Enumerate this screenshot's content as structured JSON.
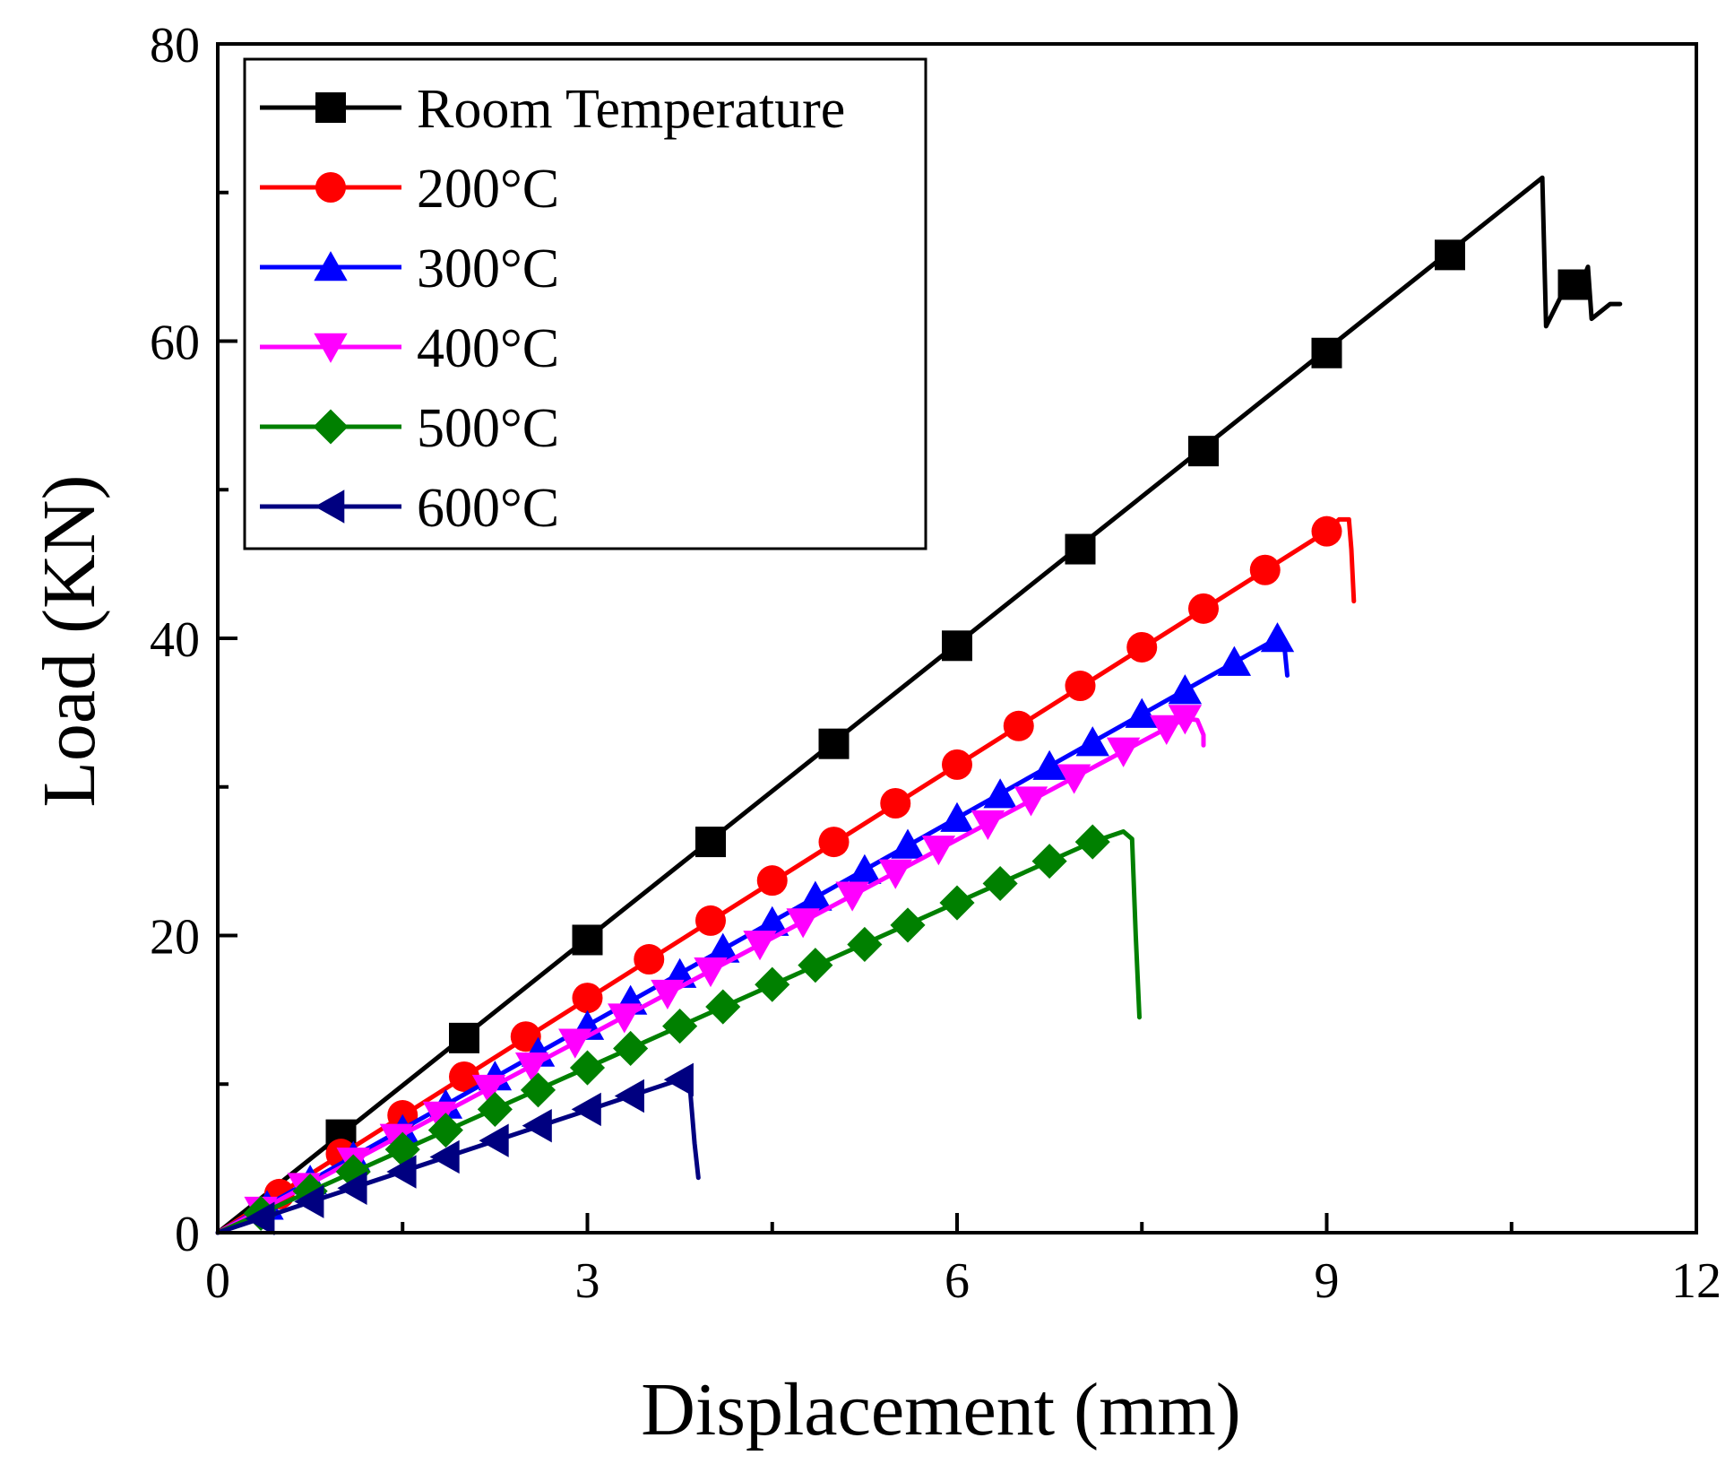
{
  "chart_data": {
    "type": "line",
    "title": "",
    "xlabel": "Displacement (mm)",
    "ylabel": "Load (KN)",
    "xlim": [
      0,
      12
    ],
    "ylim": [
      0,
      80
    ],
    "xticks": [
      0,
      3,
      6,
      9,
      12
    ],
    "yticks": [
      0,
      20,
      40,
      60,
      80
    ],
    "grid": false,
    "legend_position": "top-left",
    "series": [
      {
        "name": "Room Temperature",
        "color": "#000000",
        "marker": "square",
        "line": [
          [
            0,
            0
          ],
          [
            10.75,
            71
          ],
          [
            10.78,
            61
          ],
          [
            10.9,
            63
          ],
          [
            11.05,
            63.5
          ],
          [
            11.12,
            65
          ],
          [
            11.15,
            61.5
          ],
          [
            11.3,
            62.5
          ],
          [
            11.38,
            62.5
          ]
        ],
        "markers": [
          [
            1,
            6.6
          ],
          [
            2,
            13.1
          ],
          [
            3,
            19.7
          ],
          [
            4,
            26.3
          ],
          [
            5,
            32.9
          ],
          [
            6,
            39.5
          ],
          [
            7,
            46
          ],
          [
            8,
            52.6
          ],
          [
            9,
            59.2
          ],
          [
            10,
            65.8
          ],
          [
            11,
            63.8
          ]
        ]
      },
      {
        "name": "200°C",
        "color": "#ff0000",
        "marker": "circle",
        "line": [
          [
            0,
            0
          ],
          [
            9.0,
            47.2
          ],
          [
            9.1,
            48
          ],
          [
            9.18,
            48
          ],
          [
            9.2,
            46
          ],
          [
            9.22,
            42.5
          ]
        ],
        "markers": [
          [
            0.5,
            2.6
          ],
          [
            1,
            5.3
          ],
          [
            1.5,
            7.9
          ],
          [
            2,
            10.5
          ],
          [
            2.5,
            13.2
          ],
          [
            3,
            15.8
          ],
          [
            3.5,
            18.4
          ],
          [
            4,
            21
          ],
          [
            4.5,
            23.7
          ],
          [
            5,
            26.3
          ],
          [
            5.5,
            28.9
          ],
          [
            6,
            31.5
          ],
          [
            6.5,
            34.1
          ],
          [
            7,
            36.8
          ],
          [
            7.5,
            39.4
          ],
          [
            8,
            42
          ],
          [
            8.5,
            44.6
          ],
          [
            9,
            47.2
          ]
        ]
      },
      {
        "name": "300°C",
        "color": "#0000ff",
        "marker": "triangle-up",
        "line": [
          [
            0,
            0
          ],
          [
            8.6,
            40
          ],
          [
            8.65,
            40
          ],
          [
            8.68,
            37.5
          ]
        ],
        "markers": [
          [
            0.4,
            1.8
          ],
          [
            0.75,
            3.5
          ],
          [
            1.1,
            5.1
          ],
          [
            1.5,
            6.9
          ],
          [
            1.85,
            8.6
          ],
          [
            2.25,
            10.5
          ],
          [
            2.6,
            12.1
          ],
          [
            3,
            13.9
          ],
          [
            3.35,
            15.6
          ],
          [
            3.75,
            17.4
          ],
          [
            4.1,
            19.1
          ],
          [
            4.5,
            20.9
          ],
          [
            4.85,
            22.6
          ],
          [
            5.25,
            24.4
          ],
          [
            5.6,
            26.1
          ],
          [
            6,
            27.9
          ],
          [
            6.35,
            29.5
          ],
          [
            6.75,
            31.4
          ],
          [
            7.1,
            33
          ],
          [
            7.5,
            34.9
          ],
          [
            7.85,
            36.5
          ],
          [
            8.25,
            38.4
          ],
          [
            8.6,
            40
          ]
        ]
      },
      {
        "name": "400°C",
        "color": "#ff00ff",
        "marker": "triangle-down",
        "line": [
          [
            0,
            0
          ],
          [
            7.85,
            34.6
          ],
          [
            7.95,
            34.5
          ],
          [
            8.0,
            33.5
          ],
          [
            8.0,
            32.8
          ]
        ],
        "markers": [
          [
            0.35,
            1.5
          ],
          [
            0.7,
            3.1
          ],
          [
            1.1,
            4.8
          ],
          [
            1.45,
            6.4
          ],
          [
            1.8,
            7.9
          ],
          [
            2.2,
            9.7
          ],
          [
            2.55,
            11.2
          ],
          [
            2.9,
            12.8
          ],
          [
            3.3,
            14.5
          ],
          [
            3.65,
            16.1
          ],
          [
            4,
            17.6
          ],
          [
            4.4,
            19.4
          ],
          [
            4.75,
            20.9
          ],
          [
            5.15,
            22.7
          ],
          [
            5.5,
            24.2
          ],
          [
            5.85,
            25.8
          ],
          [
            6.25,
            27.5
          ],
          [
            6.6,
            29.1
          ],
          [
            6.95,
            30.6
          ],
          [
            7.35,
            32.4
          ],
          [
            7.7,
            33.9
          ],
          [
            7.85,
            34.6
          ]
        ]
      },
      {
        "name": "500°C",
        "color": "#008000",
        "marker": "diamond",
        "line": [
          [
            0,
            0
          ],
          [
            7.1,
            26.3
          ],
          [
            7.35,
            27
          ],
          [
            7.42,
            26.5
          ],
          [
            7.45,
            20
          ],
          [
            7.48,
            14.5
          ]
        ],
        "markers": [
          [
            0.35,
            1.3
          ],
          [
            0.75,
            2.8
          ],
          [
            1.1,
            4.1
          ],
          [
            1.5,
            5.6
          ],
          [
            1.85,
            6.9
          ],
          [
            2.25,
            8.3
          ],
          [
            2.6,
            9.6
          ],
          [
            3,
            11.1
          ],
          [
            3.35,
            12.4
          ],
          [
            3.75,
            13.9
          ],
          [
            4.1,
            15.2
          ],
          [
            4.5,
            16.7
          ],
          [
            4.85,
            18
          ],
          [
            5.25,
            19.4
          ],
          [
            5.6,
            20.7
          ],
          [
            6,
            22.2
          ],
          [
            6.35,
            23.5
          ],
          [
            6.75,
            25
          ],
          [
            7.1,
            26.3
          ]
        ]
      },
      {
        "name": "600°C",
        "color": "#000080",
        "marker": "triangle-left",
        "line": [
          [
            0,
            0
          ],
          [
            3.75,
            10.3
          ],
          [
            3.83,
            10
          ],
          [
            3.87,
            6
          ],
          [
            3.9,
            3.7
          ]
        ],
        "markers": [
          [
            0.35,
            0.95
          ],
          [
            0.75,
            2.1
          ],
          [
            1.1,
            3
          ],
          [
            1.5,
            4.1
          ],
          [
            1.85,
            5.1
          ],
          [
            2.25,
            6.2
          ],
          [
            2.6,
            7.2
          ],
          [
            3,
            8.3
          ],
          [
            3.35,
            9.2
          ],
          [
            3.75,
            10.3
          ]
        ]
      }
    ]
  }
}
